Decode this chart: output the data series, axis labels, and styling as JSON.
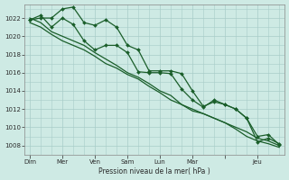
{
  "bg_color": "#ceeae4",
  "grid_color": "#a8ccc8",
  "line_color": "#1a5e2a",
  "marker_color": "#1a5e2a",
  "xlabel": "Pression niveau de la mer( hPa )",
  "ylim": [
    1007.0,
    1023.5
  ],
  "yticks": [
    1008,
    1010,
    1012,
    1014,
    1016,
    1018,
    1020,
    1022
  ],
  "series": [
    {
      "y": [
        1021.8,
        1022.3,
        1021.0,
        1022.0,
        1021.3,
        1019.5,
        1018.5,
        1019.0,
        1019.0,
        1018.2,
        1016.1,
        1016.0,
        1016.0,
        1015.9,
        1014.2,
        1013.0,
        1012.2,
        1013.0,
        1012.5,
        1012.0,
        1011.0,
        1008.4,
        1008.8,
        1008.2
      ],
      "markers": true,
      "linewidth": 0.9
    },
    {
      "y": [
        1021.8,
        1022.0,
        1022.0,
        1023.0,
        1023.2,
        1021.5,
        1021.2,
        1021.8,
        1021.0,
        1019.0,
        1018.5,
        1016.2,
        1016.2,
        1016.2,
        1015.9,
        1014.0,
        1012.3,
        1012.8,
        1012.5,
        1012.0,
        1011.0,
        1009.0,
        1009.2,
        1008.1
      ],
      "markers": true,
      "linewidth": 0.9
    },
    {
      "y": [
        1022.0,
        1021.5,
        1020.5,
        1020.0,
        1019.5,
        1019.0,
        1018.2,
        1017.5,
        1016.8,
        1016.0,
        1015.5,
        1014.8,
        1014.0,
        1013.5,
        1012.5,
        1012.0,
        1011.5,
        1011.0,
        1010.5,
        1010.0,
        1009.5,
        1008.8,
        1008.5,
        1008.0
      ],
      "markers": false,
      "linewidth": 0.9
    },
    {
      "y": [
        1021.5,
        1021.0,
        1020.2,
        1019.5,
        1019.0,
        1018.5,
        1017.8,
        1017.0,
        1016.5,
        1015.8,
        1015.3,
        1014.5,
        1013.8,
        1013.0,
        1012.5,
        1011.8,
        1011.5,
        1011.0,
        1010.5,
        1009.8,
        1009.0,
        1008.5,
        1008.2,
        1007.8
      ],
      "markers": false,
      "linewidth": 0.9
    }
  ],
  "n_points": 24,
  "day_positions": [
    0,
    3,
    6,
    9,
    12,
    15,
    18,
    21
  ],
  "day_labels": [
    "Dim",
    "Mer",
    "Ven",
    "Sam",
    "Lun",
    "Mar",
    "",
    "Jeu"
  ]
}
